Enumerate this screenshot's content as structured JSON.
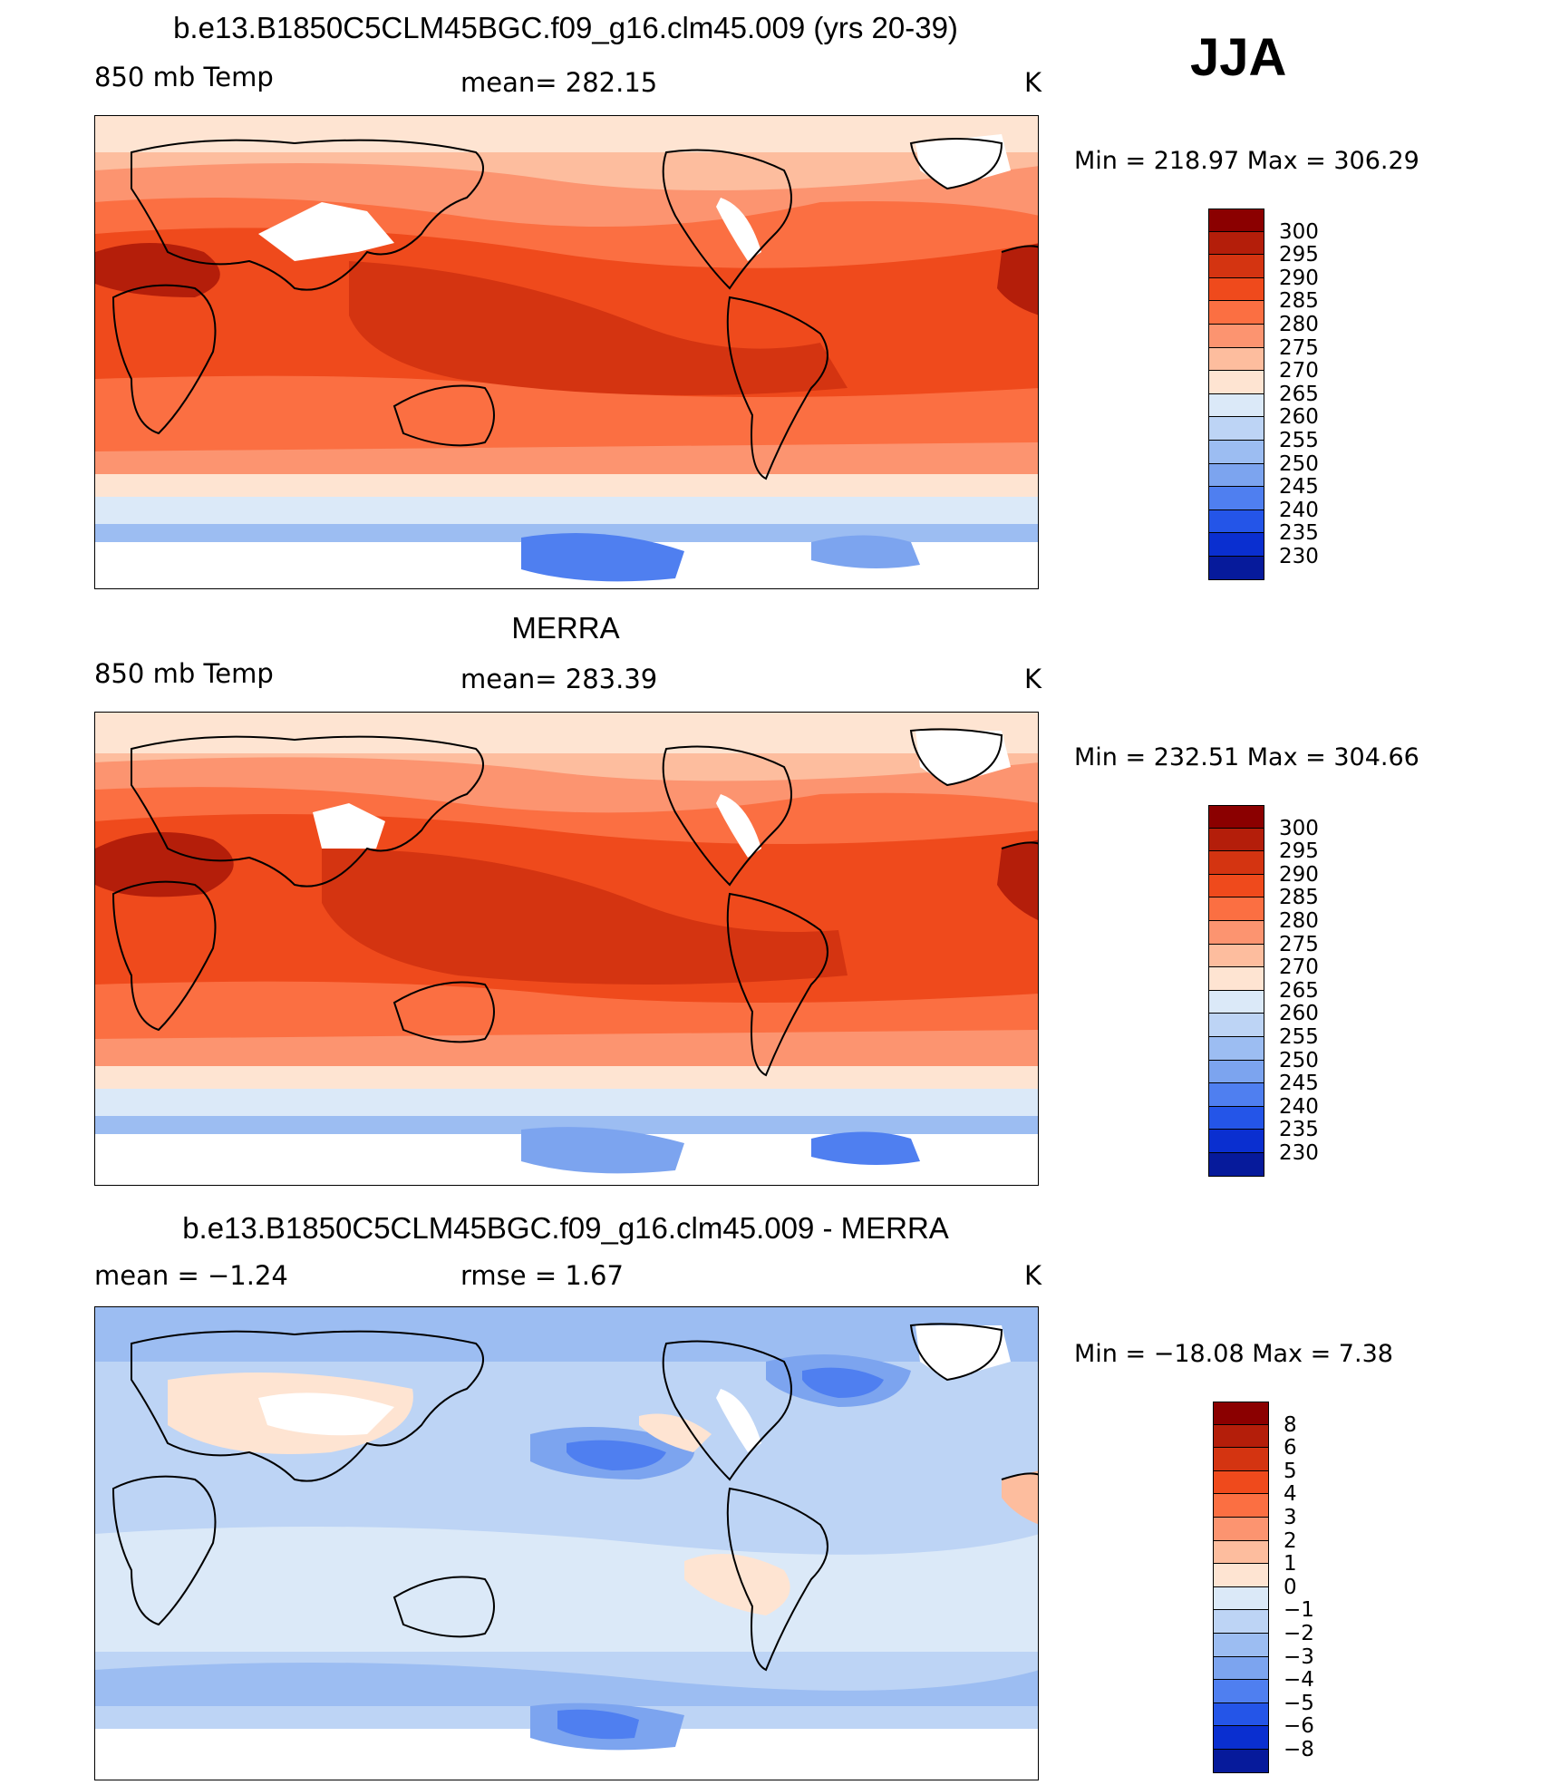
{
  "season": "JJA",
  "panels": [
    {
      "title": "b.e13.B1850C5CLM45BGC.f09_g16.clm45.009 (yrs 20-39)",
      "left_label": "850 mb Temp",
      "center_label": "mean=  282.15",
      "units": "K",
      "minmax": "Min  =  218.97  Max  =  306.29",
      "kind": "absolute"
    },
    {
      "title": "MERRA",
      "left_label": "850 mb Temp",
      "center_label": "mean=  283.39",
      "units": "K",
      "minmax": "Min  =  232.51  Max  =  304.66",
      "kind": "absolute"
    },
    {
      "title": "b.e13.B1850C5CLM45BGC.f09_g16.clm45.009 - MERRA",
      "left_label": "mean  =    −1.24",
      "center_label": "rmse  =     1.67",
      "units": "K",
      "minmax": "Min  =  −18.08  Max  =      7.38",
      "kind": "difference"
    }
  ],
  "colorbars": {
    "absolute": {
      "labels": [
        "300",
        "295",
        "290",
        "285",
        "280",
        "275",
        "270",
        "265",
        "260",
        "255",
        "250",
        "245",
        "240",
        "235",
        "230"
      ],
      "colors": [
        "#8b0000",
        "#b41e0a",
        "#d43411",
        "#ef4a1c",
        "#fb6f42",
        "#fc9470",
        "#fdbd9e",
        "#fee4d2",
        "#dbe9f8",
        "#bdd4f5",
        "#9cbdf2",
        "#7ca4ef",
        "#4f7ff0",
        "#2455e8",
        "#0a2fd0",
        "#061a9b"
      ]
    },
    "difference": {
      "labels": [
        "8",
        "6",
        "5",
        "4",
        "3",
        "2",
        "1",
        "0",
        "−1",
        "−2",
        "−3",
        "−4",
        "−5",
        "−6",
        "−8"
      ],
      "colors": [
        "#8b0000",
        "#b41e0a",
        "#d43411",
        "#ef4a1c",
        "#fb6f42",
        "#fc9470",
        "#fdbd9e",
        "#fee4d2",
        "#dbe9f8",
        "#bdd4f5",
        "#9cbdf2",
        "#7ca4ef",
        "#4f7ff0",
        "#2455e8",
        "#0a2fd0",
        "#061a9b"
      ]
    }
  }
}
